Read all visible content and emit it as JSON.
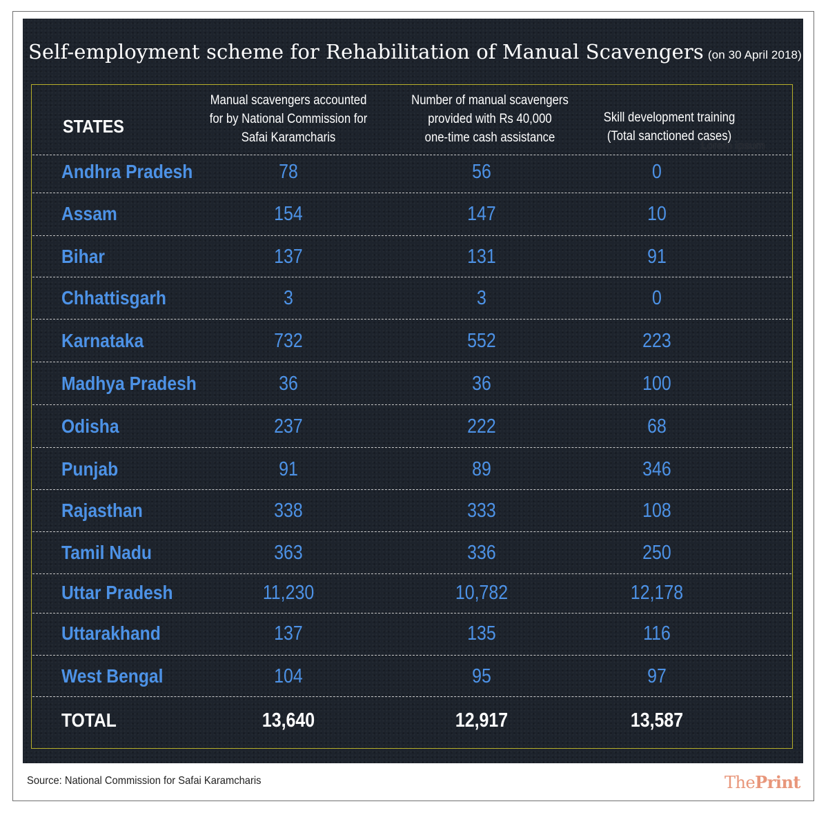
{
  "title": "Self-employment scheme for Rehabilitation of Manual Scavengers",
  "title_date": "(on 30 April 2018)",
  "headers": {
    "states": "STATES",
    "col1": [
      "Manual scavengers accounted",
      "for by National Commission for",
      "Safai Karamcharis"
    ],
    "col2": [
      "Number of manual scavengers",
      "provided with Rs 40,000",
      "one-time cash assistance"
    ],
    "col3": [
      "Skill development training",
      "(Total sanctioned cases)"
    ]
  },
  "watermark": "Lorem ipsum",
  "rows": [
    {
      "state": "Andhra Pradesh",
      "accounted": "78",
      "cash": "56",
      "skill": "0"
    },
    {
      "state": "Assam",
      "accounted": "154",
      "cash": "147",
      "skill": "10"
    },
    {
      "state": "Bihar",
      "accounted": "137",
      "cash": "131",
      "skill": "91"
    },
    {
      "state": "Chhattisgarh",
      "accounted": "3",
      "cash": "3",
      "skill": "0"
    },
    {
      "state": "Karnataka",
      "accounted": "732",
      "cash": "552",
      "skill": "223"
    },
    {
      "state": "Madhya Pradesh",
      "accounted": "36",
      "cash": "36",
      "skill": "100"
    },
    {
      "state": "Odisha",
      "accounted": "237",
      "cash": "222",
      "skill": "68"
    },
    {
      "state": "Punjab",
      "accounted": "91",
      "cash": "89",
      "skill": "346"
    },
    {
      "state": "Rajasthan",
      "accounted": "338",
      "cash": "333",
      "skill": "108"
    },
    {
      "state": "Tamil Nadu",
      "accounted": "363",
      "cash": "336",
      "skill": "250"
    },
    {
      "state": "Uttar Pradesh",
      "accounted": "11,230",
      "cash": "10,782",
      "skill": "12,178"
    },
    {
      "state": "Uttarakhand",
      "accounted": "137",
      "cash": "135",
      "skill": "116"
    },
    {
      "state": "West Bengal",
      "accounted": "104",
      "cash": "95",
      "skill": "97"
    }
  ],
  "total": {
    "label": "TOTAL",
    "accounted": "13,640",
    "cash": "12,917",
    "skill": "13,587"
  },
  "source": "Source: National Commission for Safai Karamcharis",
  "logo": {
    "part1": "The",
    "part2": "Print"
  },
  "colors": {
    "background": "#1d232c",
    "state_text": "#4d92e6",
    "border": "#b8b02a",
    "logo": "#e8967a"
  }
}
